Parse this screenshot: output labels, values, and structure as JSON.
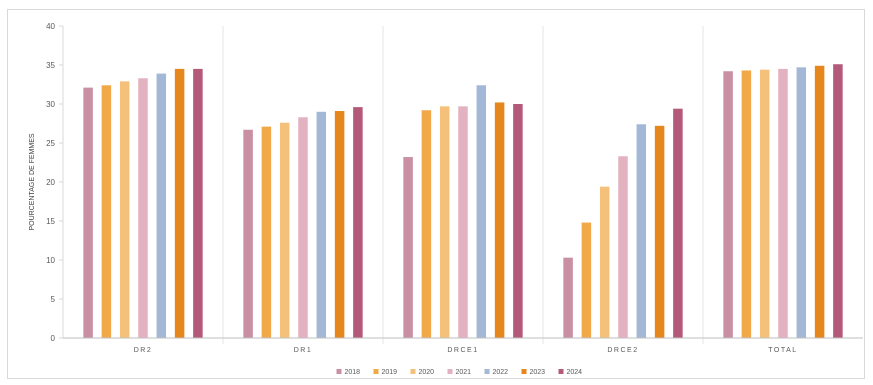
{
  "chart_data": {
    "type": "bar",
    "title": "",
    "xlabel": "",
    "ylabel": "POURCENTAGE DE FEMMES",
    "ylim": [
      0,
      40
    ],
    "yticks": [
      0,
      5,
      10,
      15,
      20,
      25,
      30,
      35,
      40
    ],
    "grid": false,
    "legend_position": "bottom",
    "categories": [
      "DR2",
      "DR1",
      "DRCE1",
      "DRCE2",
      "TOTAL"
    ],
    "series": [
      {
        "name": "2018",
        "color": "#c98fa3",
        "values": [
          32.1,
          26.7,
          23.2,
          10.3,
          34.2
        ]
      },
      {
        "name": "2019",
        "color": "#f0a849",
        "values": [
          32.4,
          27.1,
          29.2,
          14.8,
          34.3
        ]
      },
      {
        "name": "2020",
        "color": "#f5c07a",
        "values": [
          32.9,
          27.6,
          29.7,
          19.4,
          34.4
        ]
      },
      {
        "name": "2021",
        "color": "#e3b2c1",
        "values": [
          33.3,
          28.3,
          29.7,
          23.3,
          34.5
        ]
      },
      {
        "name": "2022",
        "color": "#a3b8d6",
        "values": [
          33.9,
          29.0,
          32.4,
          27.4,
          34.7
        ]
      },
      {
        "name": "2023",
        "color": "#e5871c",
        "values": [
          34.5,
          29.1,
          30.2,
          27.2,
          34.9
        ]
      },
      {
        "name": "2024",
        "color": "#b5597a",
        "values": [
          34.5,
          29.6,
          30.0,
          29.4,
          35.1
        ]
      }
    ]
  }
}
